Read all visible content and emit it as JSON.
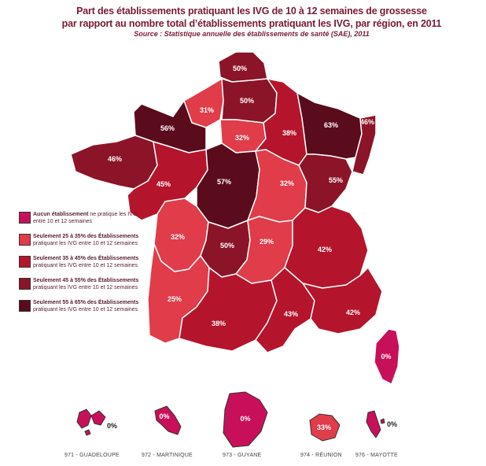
{
  "title": {
    "line1": "Part des établissements pratiquant les IVG de 10 à 12 semaines de grossesse",
    "line2": "par rapport au nombre total d’établissements pratiquant les IVG, par région, en 2011",
    "source": "Source : Statistique annuelle des établissements de santé (SAE), 2011"
  },
  "colors": {
    "none": "#c8105a",
    "c25_35": "#e03c4a",
    "c35_45": "#b5152c",
    "c45_55": "#8c1428",
    "c55_65": "#5a0c1c"
  },
  "legend": [
    {
      "bold": "Aucun établissement",
      "rest1": " ne pratique les IVG",
      "line2": "entre 10 et 12 semaines",
      "color": "#c8105a"
    },
    {
      "bold": "Seulement 25 à 35% des Établissements",
      "rest1": "",
      "line2": "pratiquant les IVG entre 10 et 12 semaines",
      "color": "#e03c4a"
    },
    {
      "bold": "Seulement 35 à 45% des Établissements",
      "rest1": "",
      "line2": "pratiquant les IVG entre 10 et 12 semaines",
      "color": "#b5152c"
    },
    {
      "bold": "Seulement 45 à 55% des Établissements",
      "rest1": "",
      "line2": "pratiquant les IVG entre 10 et 12 semaines",
      "color": "#8c1428"
    },
    {
      "bold": "Seulement 55 à 65% des Établissements",
      "rest1": "",
      "line2": "pratiquant les IVG entre 10 et 12 semaines",
      "color": "#5a0c1c"
    }
  ],
  "regions": [
    {
      "name": "Nord-Pas-de-Calais",
      "value": "50%"
    },
    {
      "name": "Haute-Normandie",
      "value": "31%"
    },
    {
      "name": "Picardie",
      "value": "50%"
    },
    {
      "name": "Basse-Normandie",
      "value": "56%"
    },
    {
      "name": "Île-de-France",
      "value": "32%"
    },
    {
      "name": "Champagne-Ardenne",
      "value": "38%"
    },
    {
      "name": "Lorraine",
      "value": "63%"
    },
    {
      "name": "Alsace",
      "value": "46%"
    },
    {
      "name": "Bretagne",
      "value": "46%"
    },
    {
      "name": "Pays de la Loire",
      "value": "45%"
    },
    {
      "name": "Centre",
      "value": "57%"
    },
    {
      "name": "Bourgogne",
      "value": "32%"
    },
    {
      "name": "Franche-Comté",
      "value": "55%"
    },
    {
      "name": "Poitou-Charentes",
      "value": "32%"
    },
    {
      "name": "Limousin",
      "value": "50%"
    },
    {
      "name": "Auvergne",
      "value": "29%"
    },
    {
      "name": "Rhône-Alpes",
      "value": "42%"
    },
    {
      "name": "Aquitaine",
      "value": "25%"
    },
    {
      "name": "Midi-Pyrénées",
      "value": "38%"
    },
    {
      "name": "Languedoc-Roussillon",
      "value": "43%"
    },
    {
      "name": "Provence-Alpes-Côte d'Azur",
      "value": "42%"
    },
    {
      "name": "Corse",
      "value": "0%"
    }
  ],
  "dom": [
    {
      "label": "971 - GUADELOUPE",
      "value": "0%"
    },
    {
      "label": "972 - MARTINIQUE",
      "value": "0%"
    },
    {
      "label": "973 - GUYANE",
      "value": "0%"
    },
    {
      "label": "974 - RÉUNION",
      "value": "33%"
    },
    {
      "label": "976 - MAYOTTE",
      "value": "0%"
    }
  ]
}
